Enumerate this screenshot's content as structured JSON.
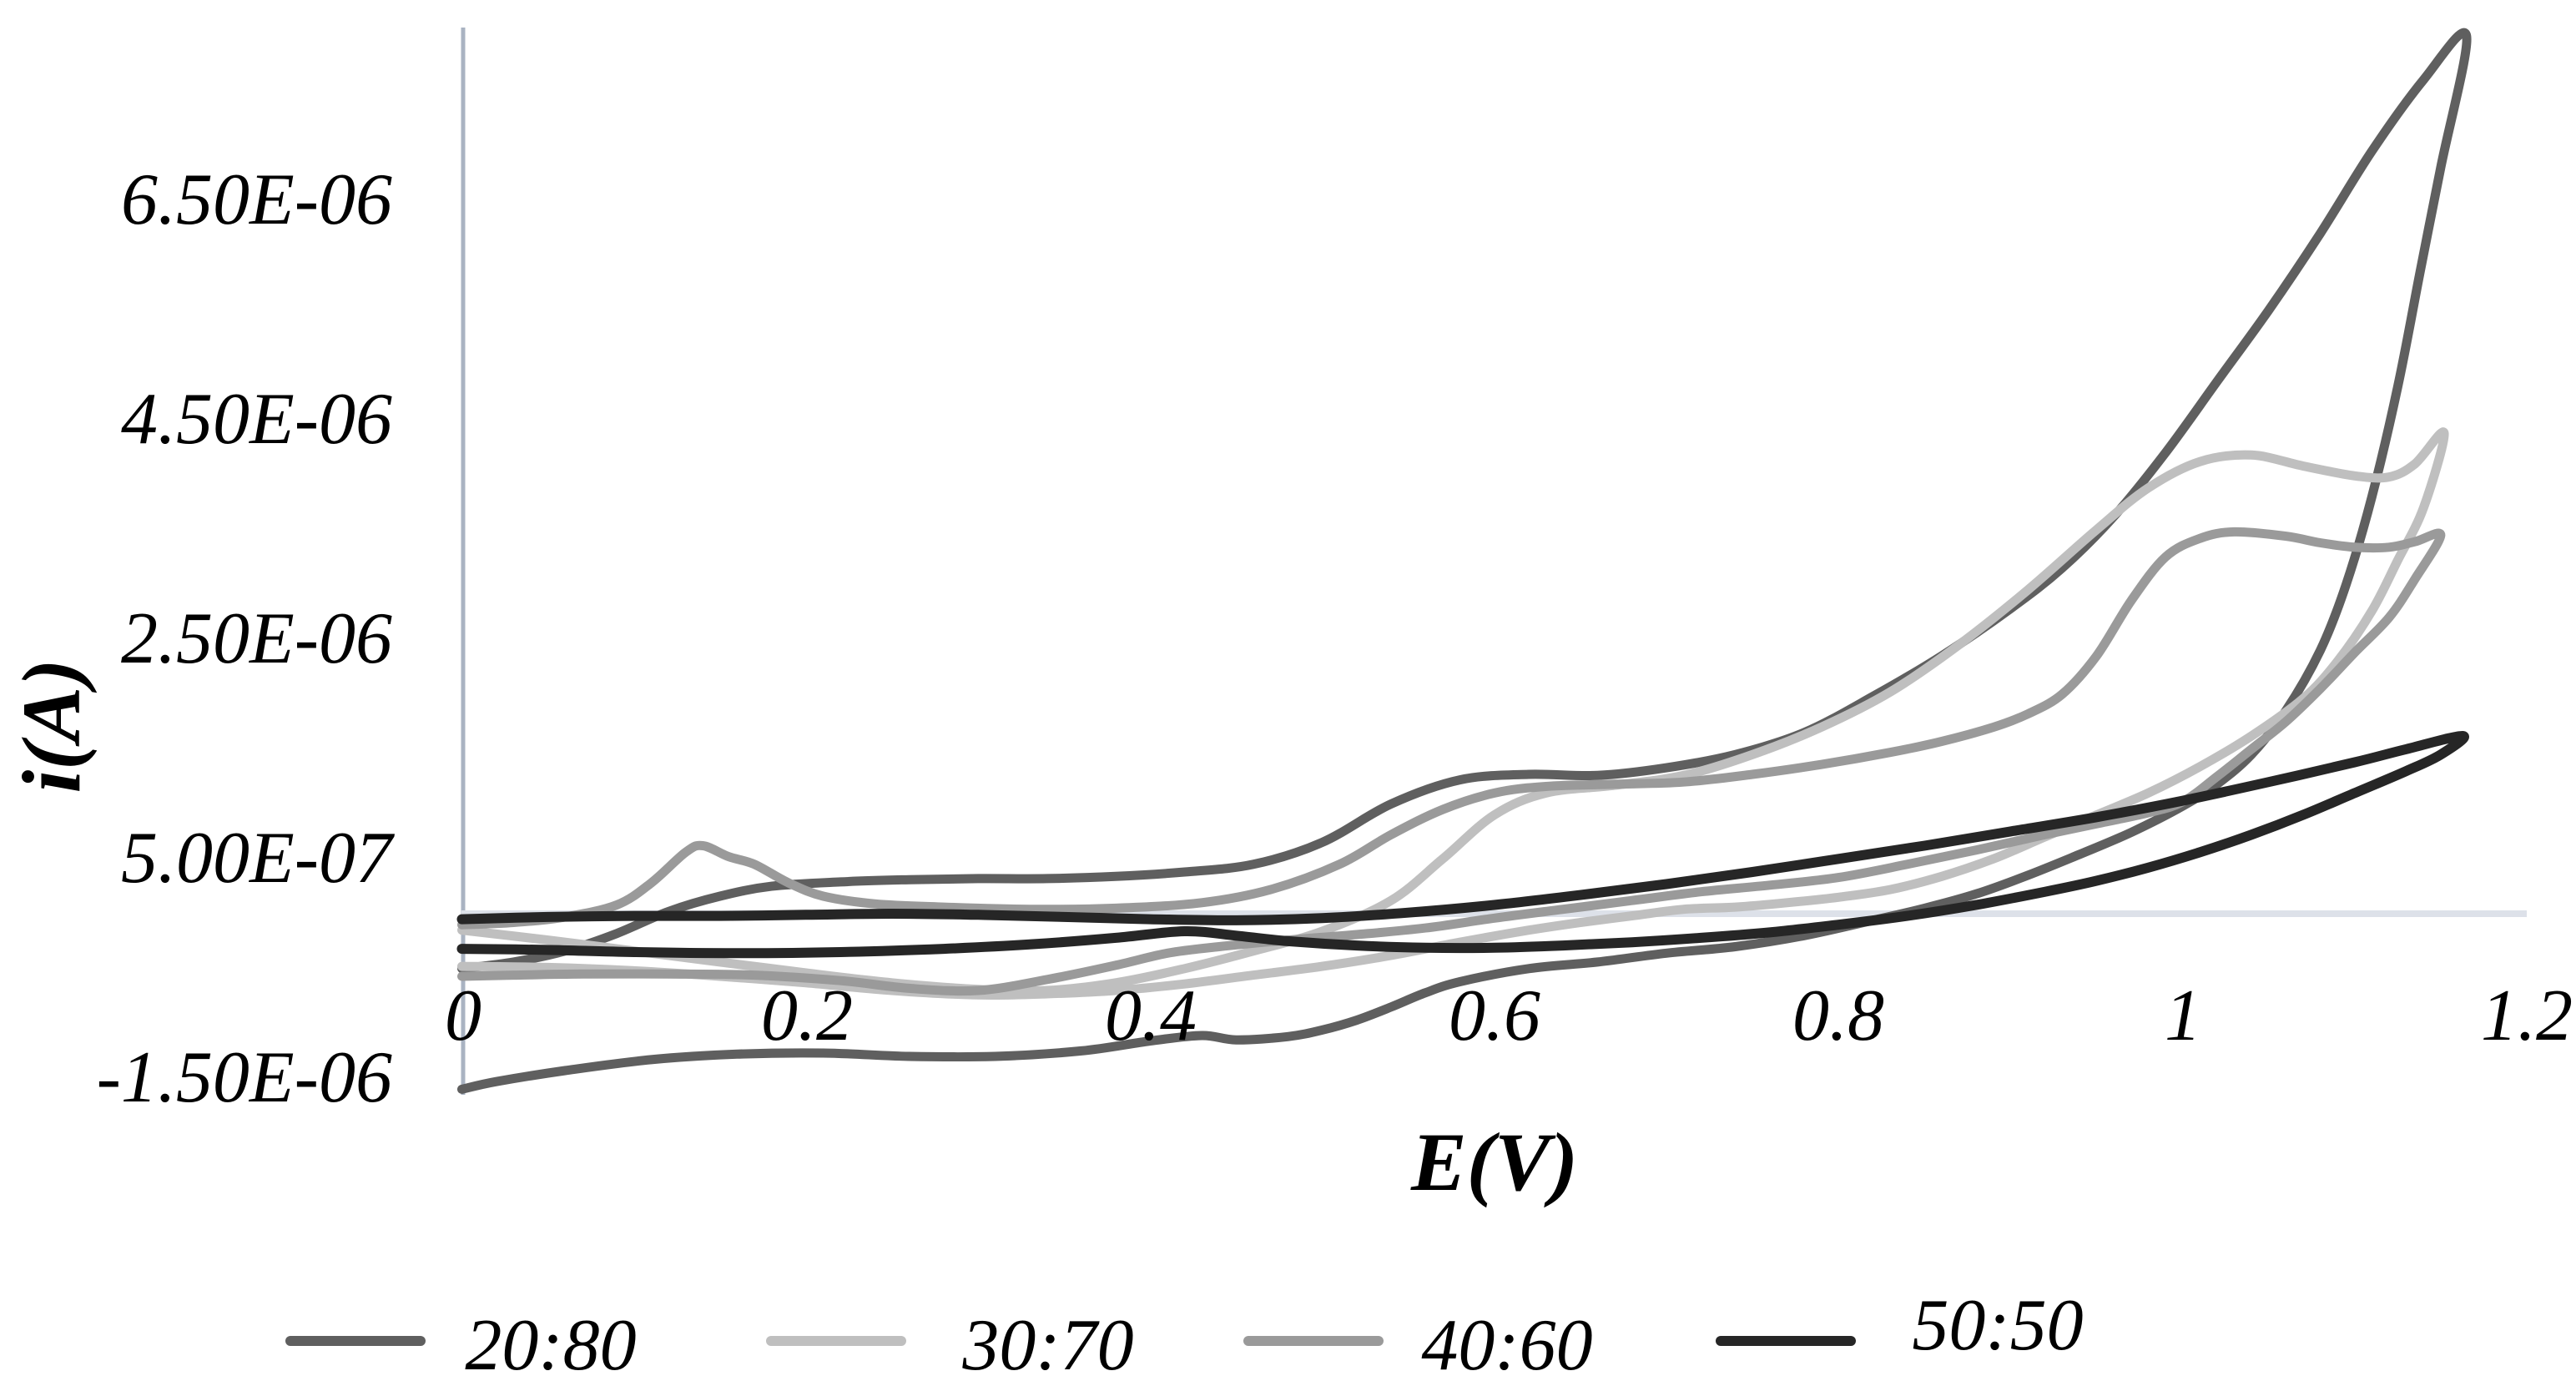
{
  "figure": {
    "background_color": "#ffffff",
    "vertical_axis_color": "#a9b3c2",
    "horizontal_axis_color": "#dde1e9"
  },
  "chart_data": {
    "type": "line",
    "chart_kind": "cyclic voltammogram, 2 branches (forward/reverse sweep) per series",
    "title": "",
    "xlabel": "E(V)",
    "ylabel": "i(A)",
    "x_unit": "V",
    "y_unit": "A",
    "xlim": [
      0,
      1.2
    ],
    "ylim": [
      -1.75e-06,
      8.35e-06
    ],
    "grid": false,
    "legend_position": "bottom",
    "x_ticks": [
      "0",
      "0.2",
      "0.4",
      "0.6",
      "0.8",
      "1",
      "1.2"
    ],
    "y_ticks": [
      "6.50E-06",
      "4.50E-06",
      "2.50E-06",
      "5.00E-07",
      "-1.50E-06"
    ],
    "y_tick_values": [
      6.5e-06,
      4.5e-06,
      2.5e-06,
      5e-07,
      -1.5e-06
    ],
    "series": [
      {
        "name": "20:80",
        "color": "#5f5f5f",
        "points": [
          [
            0.0,
            -5e-07
          ],
          [
            0.03,
            -4.4e-07
          ],
          [
            0.06,
            -3.4e-07
          ],
          [
            0.09,
            -1.8e-07
          ],
          [
            0.12,
            2e-08
          ],
          [
            0.15,
            1.6e-07
          ],
          [
            0.18,
            2.5e-07
          ],
          [
            0.22,
            2.9e-07
          ],
          [
            0.26,
            3.1e-07
          ],
          [
            0.3,
            3.2e-07
          ],
          [
            0.34,
            3.2e-07
          ],
          [
            0.38,
            3.4e-07
          ],
          [
            0.42,
            3.8e-07
          ],
          [
            0.46,
            4.5e-07
          ],
          [
            0.5,
            6.5e-07
          ],
          [
            0.54,
            1e-06
          ],
          [
            0.58,
            1.22e-06
          ],
          [
            0.62,
            1.27e-06
          ],
          [
            0.66,
            1.26e-06
          ],
          [
            0.7,
            1.33e-06
          ],
          [
            0.74,
            1.45e-06
          ],
          [
            0.78,
            1.65e-06
          ],
          [
            0.82,
            1.98e-06
          ],
          [
            0.86,
            2.35e-06
          ],
          [
            0.9,
            2.78e-06
          ],
          [
            0.93,
            3.15e-06
          ],
          [
            0.96,
            3.62e-06
          ],
          [
            0.99,
            4.2e-06
          ],
          [
            1.02,
            4.85e-06
          ],
          [
            1.05,
            5.5e-06
          ],
          [
            1.08,
            6.2e-06
          ],
          [
            1.11,
            6.95e-06
          ],
          [
            1.14,
            7.6e-06
          ],
          [
            1.165,
            8e-06
          ],
          [
            1.15,
            6.8e-06
          ],
          [
            1.138,
            5.85e-06
          ],
          [
            1.125,
            4.8e-06
          ],
          [
            1.11,
            3.8e-06
          ],
          [
            1.095,
            3e-06
          ],
          [
            1.08,
            2.4e-06
          ],
          [
            1.06,
            1.85e-06
          ],
          [
            1.04,
            1.45e-06
          ],
          [
            1.02,
            1.18e-06
          ],
          [
            1.0,
            9.8e-07
          ],
          [
            0.97,
            7.4e-07
          ],
          [
            0.94,
            5.4e-07
          ],
          [
            0.91,
            3.5e-07
          ],
          [
            0.88,
            1.8e-07
          ],
          [
            0.85,
            5e-08
          ],
          [
            0.82,
            -6e-08
          ],
          [
            0.78,
            -2e-07
          ],
          [
            0.74,
            -3e-07
          ],
          [
            0.7,
            -3.6e-07
          ],
          [
            0.66,
            -4.4e-07
          ],
          [
            0.62,
            -5e-07
          ],
          [
            0.58,
            -6.2e-07
          ],
          [
            0.56,
            -7.2e-07
          ],
          [
            0.54,
            -8.5e-07
          ],
          [
            0.52,
            -9.7e-07
          ],
          [
            0.5,
            -1.06e-06
          ],
          [
            0.48,
            -1.12e-06
          ],
          [
            0.45,
            -1.15e-06
          ],
          [
            0.43,
            -1.11e-06
          ],
          [
            0.4,
            -1.16e-06
          ],
          [
            0.36,
            -1.25e-06
          ],
          [
            0.31,
            -1.3e-06
          ],
          [
            0.26,
            -1.3e-06
          ],
          [
            0.21,
            -1.27e-06
          ],
          [
            0.16,
            -1.28e-06
          ],
          [
            0.11,
            -1.33e-06
          ],
          [
            0.06,
            -1.43e-06
          ],
          [
            0.02,
            -1.53e-06
          ],
          [
            0.0,
            -1.6e-06
          ]
        ]
      },
      {
        "name": "30:70",
        "color": "#bfbfbf",
        "points": [
          [
            0.0,
            -1.5e-07
          ],
          [
            0.05,
            -2.4e-07
          ],
          [
            0.1,
            -3.4e-07
          ],
          [
            0.15,
            -4.4e-07
          ],
          [
            0.2,
            -5.4e-07
          ],
          [
            0.25,
            -6.3e-07
          ],
          [
            0.3,
            -6.9e-07
          ],
          [
            0.34,
            -7e-07
          ],
          [
            0.38,
            -6.3e-07
          ],
          [
            0.42,
            -5e-07
          ],
          [
            0.46,
            -3.4e-07
          ],
          [
            0.5,
            -1.6e-07
          ],
          [
            0.54,
            1.2e-07
          ],
          [
            0.57,
            5e-07
          ],
          [
            0.6,
            9e-07
          ],
          [
            0.63,
            1.1e-06
          ],
          [
            0.67,
            1.17e-06
          ],
          [
            0.71,
            1.26e-06
          ],
          [
            0.75,
            1.45e-06
          ],
          [
            0.79,
            1.7e-06
          ],
          [
            0.83,
            2.02e-06
          ],
          [
            0.87,
            2.45e-06
          ],
          [
            0.91,
            2.95e-06
          ],
          [
            0.95,
            3.5e-06
          ],
          [
            0.98,
            3.88e-06
          ],
          [
            1.01,
            4.12e-06
          ],
          [
            1.04,
            4.18e-06
          ],
          [
            1.07,
            4.08e-06
          ],
          [
            1.1,
            3.99e-06
          ],
          [
            1.12,
            3.98e-06
          ],
          [
            1.135,
            4.1e-06
          ],
          [
            1.152,
            4.38e-06
          ],
          [
            1.14,
            3.7e-06
          ],
          [
            1.125,
            3.22e-06
          ],
          [
            1.11,
            2.76e-06
          ],
          [
            1.09,
            2.3e-06
          ],
          [
            1.07,
            1.96e-06
          ],
          [
            1.04,
            1.62e-06
          ],
          [
            1.01,
            1.34e-06
          ],
          [
            0.98,
            1.1e-06
          ],
          [
            0.95,
            9e-07
          ],
          [
            0.92,
            7e-07
          ],
          [
            0.89,
            5e-07
          ],
          [
            0.86,
            3.4e-07
          ],
          [
            0.83,
            2.2e-07
          ],
          [
            0.8,
            1.5e-07
          ],
          [
            0.77,
            1e-07
          ],
          [
            0.74,
            6e-08
          ],
          [
            0.71,
            4e-08
          ],
          [
            0.68,
            -2e-08
          ],
          [
            0.65,
            -8e-08
          ],
          [
            0.62,
            -1.5e-07
          ],
          [
            0.58,
            -2.6e-07
          ],
          [
            0.54,
            -3.8e-07
          ],
          [
            0.5,
            -4.8e-07
          ],
          [
            0.46,
            -5.6e-07
          ],
          [
            0.42,
            -6.4e-07
          ],
          [
            0.38,
            -7e-07
          ],
          [
            0.34,
            -7.3e-07
          ],
          [
            0.3,
            -7.4e-07
          ],
          [
            0.25,
            -7e-07
          ],
          [
            0.2,
            -6.3e-07
          ],
          [
            0.15,
            -5.7e-07
          ],
          [
            0.1,
            -5.2e-07
          ],
          [
            0.05,
            -4.9e-07
          ],
          [
            0.0,
            -4.8e-07
          ]
        ]
      },
      {
        "name": "40:60",
        "color": "#9a9a9a",
        "points": [
          [
            0.0,
            -1e-07
          ],
          [
            0.03,
            -8e-08
          ],
          [
            0.06,
            -3e-08
          ],
          [
            0.09,
            8e-08
          ],
          [
            0.11,
            2.8e-07
          ],
          [
            0.13,
            5.6e-07
          ],
          [
            0.14,
            6.2e-07
          ],
          [
            0.155,
            5.2e-07
          ],
          [
            0.17,
            4.5e-07
          ],
          [
            0.19,
            2.8e-07
          ],
          [
            0.21,
            1.6e-07
          ],
          [
            0.24,
            9e-08
          ],
          [
            0.28,
            6e-08
          ],
          [
            0.33,
            4e-08
          ],
          [
            0.38,
            5e-08
          ],
          [
            0.43,
            1e-07
          ],
          [
            0.47,
            2.2e-07
          ],
          [
            0.51,
            4.5e-07
          ],
          [
            0.54,
            7.2e-07
          ],
          [
            0.57,
            9.5e-07
          ],
          [
            0.6,
            1.1e-06
          ],
          [
            0.63,
            1.16e-06
          ],
          [
            0.67,
            1.18e-06
          ],
          [
            0.71,
            1.2e-06
          ],
          [
            0.75,
            1.27e-06
          ],
          [
            0.79,
            1.36e-06
          ],
          [
            0.83,
            1.47e-06
          ],
          [
            0.86,
            1.57e-06
          ],
          [
            0.89,
            1.7e-06
          ],
          [
            0.91,
            1.82e-06
          ],
          [
            0.93,
            2e-06
          ],
          [
            0.95,
            2.35e-06
          ],
          [
            0.97,
            2.85e-06
          ],
          [
            0.99,
            3.25e-06
          ],
          [
            1.01,
            3.42e-06
          ],
          [
            1.03,
            3.48e-06
          ],
          [
            1.06,
            3.44e-06
          ],
          [
            1.08,
            3.38e-06
          ],
          [
            1.1,
            3.34e-06
          ],
          [
            1.12,
            3.34e-06
          ],
          [
            1.135,
            3.39e-06
          ],
          [
            1.15,
            3.45e-06
          ],
          [
            1.135,
            3.05e-06
          ],
          [
            1.12,
            2.7e-06
          ],
          [
            1.1,
            2.38e-06
          ],
          [
            1.08,
            2.05e-06
          ],
          [
            1.06,
            1.75e-06
          ],
          [
            1.04,
            1.5e-06
          ],
          [
            1.02,
            1.25e-06
          ],
          [
            1.0,
            1.02e-06
          ],
          [
            0.98,
            9.2e-07
          ],
          [
            0.95,
            8.2e-07
          ],
          [
            0.92,
            7.2e-07
          ],
          [
            0.88,
            5.8e-07
          ],
          [
            0.84,
            4.5e-07
          ],
          [
            0.8,
            3.3e-07
          ],
          [
            0.76,
            2.6e-07
          ],
          [
            0.72,
            2e-07
          ],
          [
            0.68,
            1.2e-07
          ],
          [
            0.64,
            4e-08
          ],
          [
            0.6,
            -4e-08
          ],
          [
            0.56,
            -1.3e-07
          ],
          [
            0.52,
            -1.9e-07
          ],
          [
            0.48,
            -2.4e-07
          ],
          [
            0.44,
            -3e-07
          ],
          [
            0.41,
            -3.6e-07
          ],
          [
            0.38,
            -4.7e-07
          ],
          [
            0.34,
            -6e-07
          ],
          [
            0.3,
            -7e-07
          ],
          [
            0.26,
            -6.8e-07
          ],
          [
            0.22,
            -6.1e-07
          ],
          [
            0.17,
            -5.6e-07
          ],
          [
            0.12,
            -5.5e-07
          ],
          [
            0.07,
            -5.5e-07
          ],
          [
            0.03,
            -5.6e-07
          ],
          [
            0.0,
            -5.7e-07
          ]
        ]
      },
      {
        "name": "50:50",
        "color": "#262626",
        "points": [
          [
            0.0,
            -5e-08
          ],
          [
            0.05,
            -3e-08
          ],
          [
            0.1,
            -2e-08
          ],
          [
            0.15,
            -2e-08
          ],
          [
            0.2,
            -1e-08
          ],
          [
            0.25,
            0.0
          ],
          [
            0.3,
            -1e-08
          ],
          [
            0.35,
            -3e-08
          ],
          [
            0.4,
            -5e-08
          ],
          [
            0.45,
            -6e-08
          ],
          [
            0.5,
            -4e-08
          ],
          [
            0.55,
            1e-08
          ],
          [
            0.6,
            8e-08
          ],
          [
            0.65,
            1.7e-07
          ],
          [
            0.7,
            2.7e-07
          ],
          [
            0.75,
            3.8e-07
          ],
          [
            0.8,
            5e-07
          ],
          [
            0.85,
            6.2e-07
          ],
          [
            0.9,
            7.5e-07
          ],
          [
            0.95,
            8.8e-07
          ],
          [
            1.0,
            1.03e-06
          ],
          [
            1.05,
            1.2e-06
          ],
          [
            1.1,
            1.38e-06
          ],
          [
            1.13,
            1.5e-06
          ],
          [
            1.163,
            1.62e-06
          ],
          [
            1.15,
            1.45e-06
          ],
          [
            1.13,
            1.3e-06
          ],
          [
            1.1,
            1.1e-06
          ],
          [
            1.07,
            9e-07
          ],
          [
            1.04,
            7.2e-07
          ],
          [
            1.01,
            5.6e-07
          ],
          [
            0.98,
            4.2e-07
          ],
          [
            0.95,
            3e-07
          ],
          [
            0.92,
            2e-07
          ],
          [
            0.88,
            8e-08
          ],
          [
            0.84,
            -2e-08
          ],
          [
            0.8,
            -1e-07
          ],
          [
            0.76,
            -1.7e-07
          ],
          [
            0.72,
            -2.2e-07
          ],
          [
            0.68,
            -2.6e-07
          ],
          [
            0.64,
            -2.9e-07
          ],
          [
            0.6,
            -3.1e-07
          ],
          [
            0.56,
            -3.1e-07
          ],
          [
            0.52,
            -2.9e-07
          ],
          [
            0.48,
            -2.5e-07
          ],
          [
            0.45,
            -2e-07
          ],
          [
            0.42,
            -1.6e-07
          ],
          [
            0.38,
            -2.2e-07
          ],
          [
            0.33,
            -2.8e-07
          ],
          [
            0.28,
            -3.2e-07
          ],
          [
            0.22,
            -3.5e-07
          ],
          [
            0.16,
            -3.6e-07
          ],
          [
            0.1,
            -3.5e-07
          ],
          [
            0.05,
            -3.3e-07
          ],
          [
            0.0,
            -3.2e-07
          ]
        ]
      }
    ]
  },
  "legend": {
    "items": [
      {
        "label": "20:80"
      },
      {
        "label": "30:70"
      },
      {
        "label": "40:60"
      },
      {
        "label": "50:50"
      }
    ]
  }
}
